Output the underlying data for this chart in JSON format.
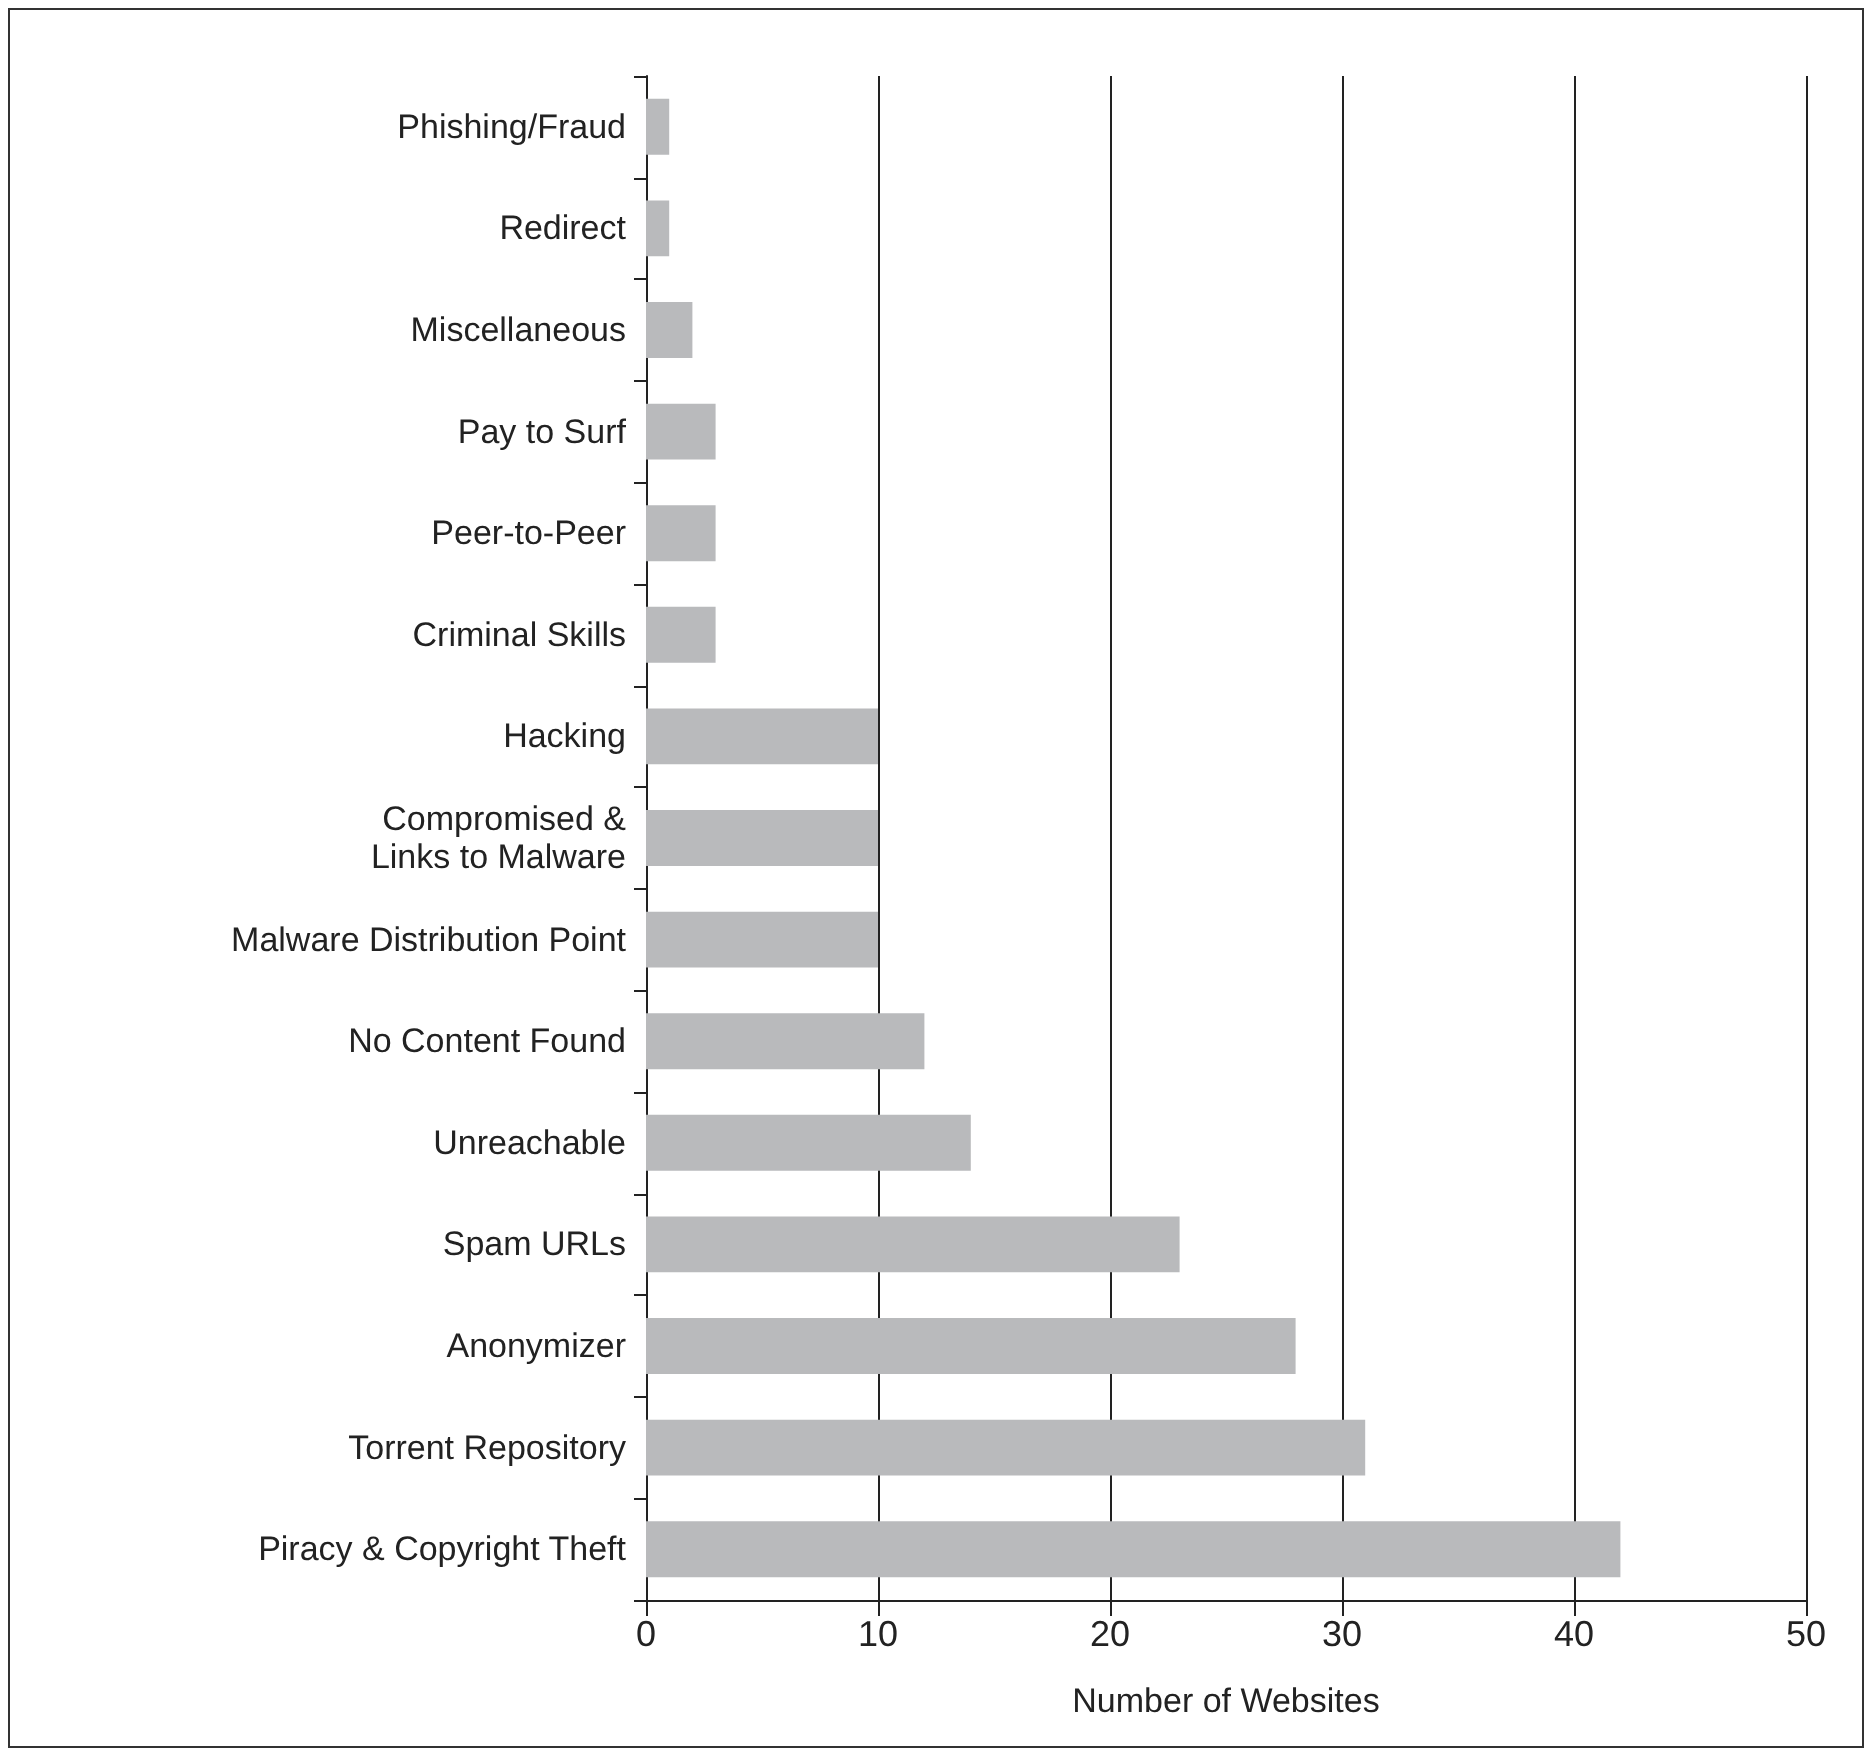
{
  "chart_data": {
    "type": "bar",
    "orientation": "horizontal",
    "xlabel": "Number of Websites",
    "categories": [
      "Phishing/Fraud",
      "Redirect",
      "Miscellaneous",
      "Pay to Surf",
      "Peer-to-Peer",
      "Criminal Skills",
      "Hacking",
      "Compromised &\nLinks to Malware",
      "Malware Distribution Point",
      "No Content Found",
      "Unreachable",
      "Spam URLs",
      "Anonymizer",
      "Torrent Repository",
      "Piracy & Copyright Theft"
    ],
    "values": [
      1,
      1,
      2,
      3,
      3,
      3,
      10,
      10,
      10,
      12,
      14,
      23,
      28,
      31,
      42
    ],
    "color": "#b9babc",
    "xlim": [
      0,
      50
    ],
    "xticks": [
      0,
      10,
      20,
      30,
      40,
      50
    ],
    "grid": "x"
  }
}
